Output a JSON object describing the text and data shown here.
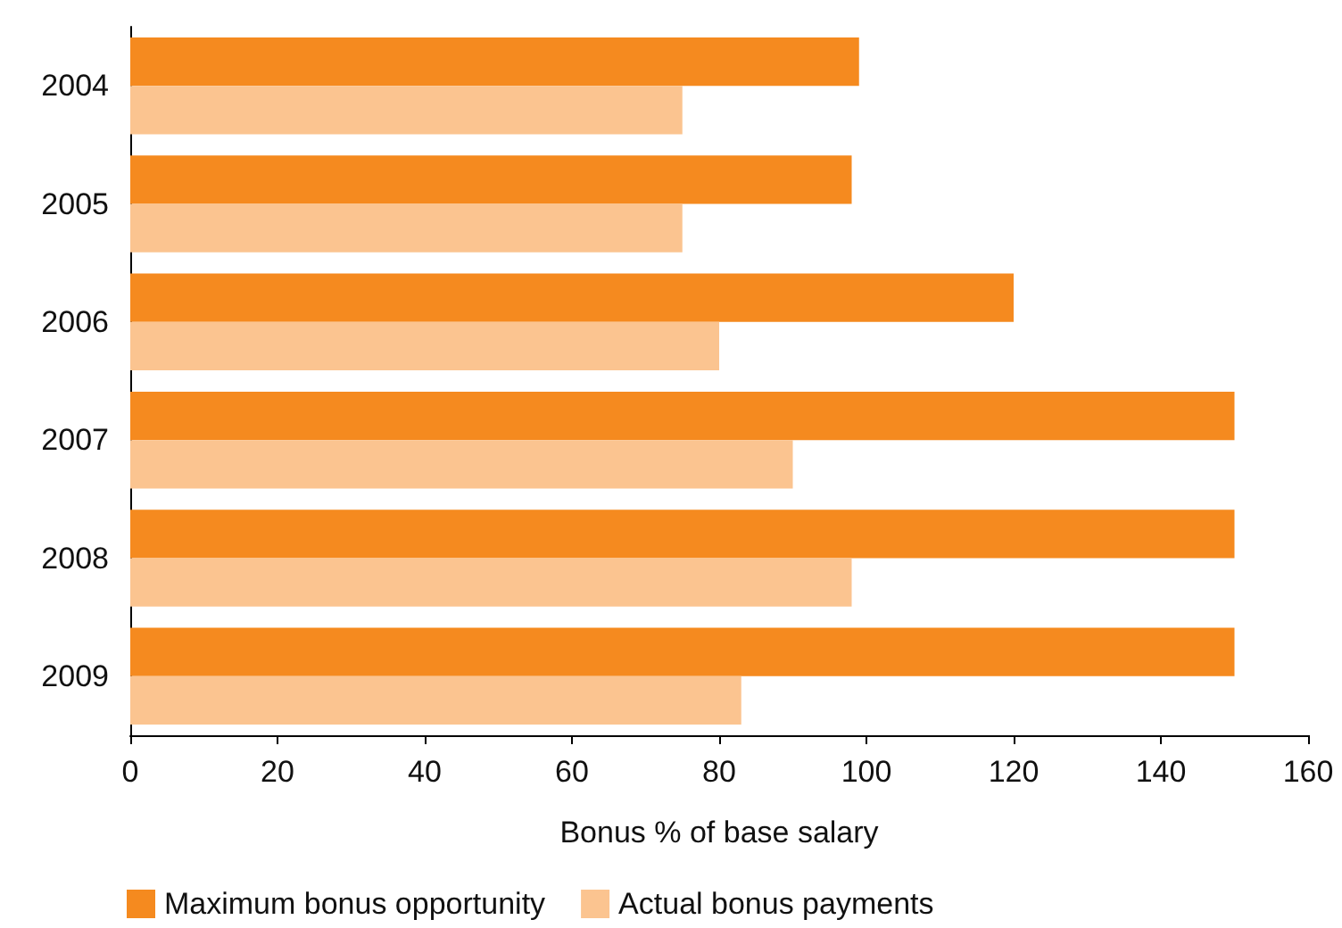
{
  "chart_data": {
    "type": "bar",
    "orientation": "horizontal",
    "xlabel": "Bonus % of base salary",
    "categories": [
      "2004",
      "2005",
      "2006",
      "2007",
      "2008",
      "2009"
    ],
    "series": [
      {
        "name": "Maximum bonus opportunity",
        "color": "#f58a1f",
        "values": [
          99,
          98,
          120,
          150,
          150,
          150
        ]
      },
      {
        "name": "Actual bonus payments",
        "color": "#fbc490",
        "values": [
          75,
          75,
          80,
          90,
          98,
          83
        ]
      }
    ],
    "xlim": [
      0,
      160
    ],
    "xticks": [
      0,
      20,
      40,
      60,
      80,
      100,
      120,
      140,
      160
    ],
    "grid": false,
    "legend": "bottom left"
  }
}
